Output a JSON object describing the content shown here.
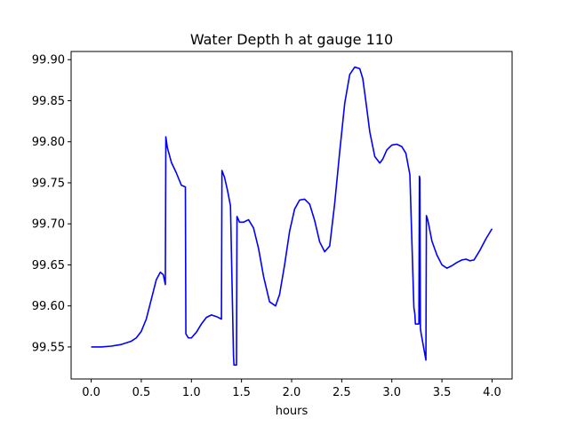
{
  "chart_data": {
    "type": "line",
    "title": "Water Depth h at gauge 110",
    "xlabel": "hours",
    "ylabel": "",
    "xlim": [
      -0.2,
      4.2
    ],
    "ylim": [
      99.511,
      99.91
    ],
    "xticks": [
      0.0,
      0.5,
      1.0,
      1.5,
      2.0,
      2.5,
      3.0,
      3.5,
      4.0
    ],
    "xtick_labels": [
      "0.0",
      "0.5",
      "1.0",
      "1.5",
      "2.0",
      "2.5",
      "3.0",
      "3.5",
      "4.0"
    ],
    "yticks": [
      99.55,
      99.6,
      99.65,
      99.7,
      99.75,
      99.8,
      99.85,
      99.9
    ],
    "ytick_labels": [
      "99.55",
      "99.60",
      "99.65",
      "99.70",
      "99.75",
      "99.80",
      "99.85",
      "99.90"
    ],
    "grid": false,
    "series": [
      {
        "color": "#0000ff",
        "x": [
          0.0,
          0.1,
          0.2,
          0.3,
          0.4,
          0.45,
          0.5,
          0.55,
          0.6,
          0.65,
          0.69,
          0.72,
          0.74,
          0.745,
          0.76,
          0.8,
          0.85,
          0.9,
          0.94,
          0.945,
          0.97,
          1.0,
          1.05,
          1.1,
          1.15,
          1.2,
          1.25,
          1.3,
          1.305,
          1.33,
          1.36,
          1.39,
          1.42,
          1.425,
          1.45,
          1.455,
          1.48,
          1.52,
          1.57,
          1.62,
          1.67,
          1.72,
          1.78,
          1.84,
          1.88,
          1.93,
          1.98,
          2.03,
          2.08,
          2.13,
          2.18,
          2.23,
          2.28,
          2.33,
          2.38,
          2.43,
          2.48,
          2.53,
          2.58,
          2.63,
          2.68,
          2.71,
          2.74,
          2.78,
          2.83,
          2.88,
          2.91,
          2.95,
          3.0,
          3.05,
          3.1,
          3.14,
          3.18,
          3.22,
          3.23,
          3.235,
          3.27,
          3.275,
          3.28,
          3.285,
          3.29,
          3.34,
          3.345,
          3.36,
          3.4,
          3.45,
          3.5,
          3.55,
          3.6,
          3.65,
          3.7,
          3.74,
          3.78,
          3.82,
          3.88,
          3.94,
          4.0
        ],
        "y": [
          99.55,
          99.55,
          99.551,
          99.553,
          99.557,
          99.561,
          99.569,
          99.584,
          99.608,
          99.632,
          99.641,
          99.638,
          99.626,
          99.806,
          99.793,
          99.775,
          99.762,
          99.747,
          99.745,
          99.566,
          99.561,
          99.561,
          99.568,
          99.578,
          99.586,
          99.589,
          99.587,
          99.584,
          99.765,
          99.757,
          99.741,
          99.722,
          99.54,
          99.528,
          99.528,
          99.709,
          99.702,
          99.702,
          99.705,
          99.695,
          99.67,
          99.636,
          99.605,
          99.6,
          99.614,
          99.65,
          99.691,
          99.718,
          99.729,
          99.73,
          99.724,
          99.704,
          99.678,
          99.666,
          99.673,
          99.725,
          99.788,
          99.847,
          99.882,
          99.891,
          99.889,
          99.877,
          99.85,
          99.812,
          99.782,
          99.774,
          99.779,
          99.79,
          99.796,
          99.797,
          99.794,
          99.786,
          99.76,
          99.598,
          99.59,
          99.578,
          99.578,
          99.758,
          99.755,
          99.573,
          99.568,
          99.534,
          99.71,
          99.704,
          99.679,
          99.662,
          99.65,
          99.646,
          99.649,
          99.653,
          99.656,
          99.657,
          99.655,
          99.656,
          99.668,
          99.682,
          99.694
        ]
      }
    ]
  }
}
